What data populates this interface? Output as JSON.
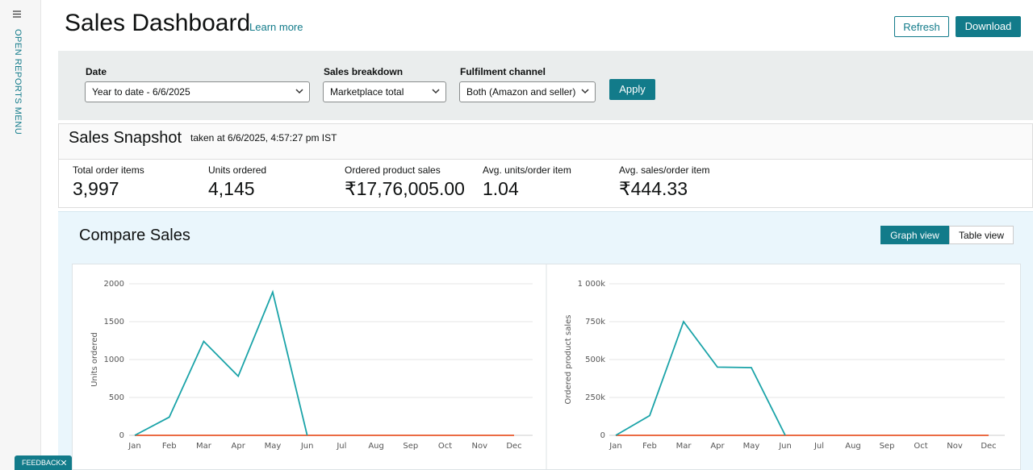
{
  "sidebar": {
    "menu": "OPEN REPORTS MENU"
  },
  "header": {
    "title": "Sales Dashboard",
    "learn_more": "Learn more",
    "buttons": [
      "Refresh",
      "Download"
    ]
  },
  "filters": {
    "fields": [
      {
        "label": "Date",
        "value": "Year to date - 6/6/2025"
      },
      {
        "label": "Sales breakdown",
        "value": "Marketplace total"
      },
      {
        "label": "Fulfilment channel",
        "value": "Both (Amazon and seller)"
      }
    ],
    "apply": "Apply"
  },
  "snapshot": {
    "title": "Sales Snapshot",
    "taken": "taken at 6/6/2025, 4:57:27 pm IST",
    "metrics": [
      {
        "label": "Total order items",
        "value": "3,997"
      },
      {
        "label": "Units ordered",
        "value": "4,145"
      },
      {
        "label": "Ordered product sales",
        "value": "₹17,76,005.00"
      },
      {
        "label": "Avg. units/order item",
        "value": "1.04"
      },
      {
        "label": "Avg. sales/order item",
        "value": "₹444.33"
      }
    ]
  },
  "compare": {
    "title": "Compare Sales",
    "views": [
      "Graph view",
      "Table view"
    ]
  },
  "feedback": "FEEDBACK",
  "chart_data": [
    {
      "type": "line",
      "y_label": "Units ordered",
      "categories": [
        "Jan",
        "Feb",
        "Mar",
        "Apr",
        "May",
        "Jun",
        "Jul",
        "Aug",
        "Sep",
        "Oct",
        "Nov",
        "Dec"
      ],
      "series": [
        {
          "color": "#1aa3a8",
          "values": [
            0,
            240,
            1240,
            780,
            1890,
            0,
            null,
            null,
            null,
            null,
            null,
            null
          ]
        },
        {
          "color": "#e8562a",
          "values": [
            0,
            0,
            0,
            0,
            0,
            0,
            0,
            0,
            0,
            0,
            0,
            0
          ]
        }
      ],
      "ylim": [
        0,
        2000
      ],
      "yticks": [
        0,
        500,
        1000,
        1500,
        2000
      ],
      "grid": true
    },
    {
      "type": "line",
      "y_label": "Ordered product sales",
      "categories": [
        "Jan",
        "Feb",
        "Mar",
        "Apr",
        "May",
        "Jun",
        "Jul",
        "Aug",
        "Sep",
        "Oct",
        "Nov",
        "Dec"
      ],
      "series": [
        {
          "color": "#1aa3a8",
          "values": [
            0,
            130000,
            750000,
            450000,
            447000,
            0,
            null,
            null,
            null,
            null,
            null,
            null
          ]
        },
        {
          "color": "#e8562a",
          "values": [
            0,
            0,
            0,
            0,
            0,
            0,
            0,
            0,
            0,
            0,
            0,
            0
          ]
        }
      ],
      "ylim": [
        0,
        1000000
      ],
      "yticks": [
        0,
        {
          "value": 250000,
          "label": "250k"
        },
        {
          "value": 500000,
          "label": "500k"
        },
        {
          "value": 750000,
          "label": "750k"
        },
        {
          "value": 1000000,
          "label": "1 000k"
        }
      ],
      "grid": true
    }
  ]
}
